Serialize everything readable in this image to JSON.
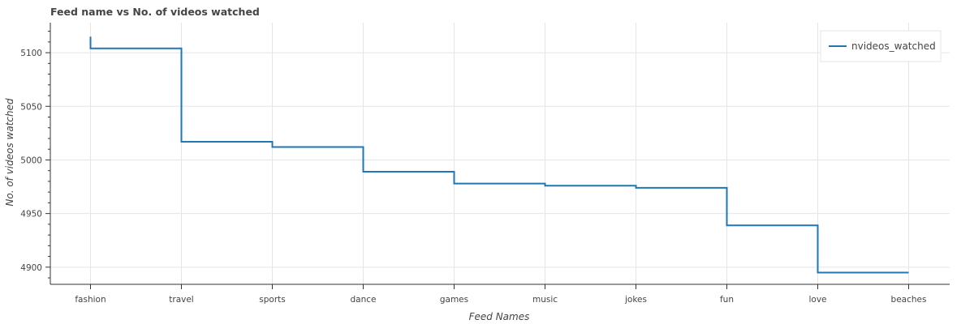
{
  "chart_data": {
    "type": "line",
    "step": true,
    "title": "Feed name vs No. of videos watched",
    "xlabel": "Feed Names",
    "ylabel": "No. of videos watched",
    "categories": [
      "fashion",
      "travel",
      "sports",
      "dance",
      "games",
      "music",
      "jokes",
      "fun",
      "love",
      "beaches"
    ],
    "series": [
      {
        "name": "nvideos_watched",
        "color": "#1f77b4",
        "values": [
          5115,
          5104,
          5017,
          5012,
          4989,
          4978,
          4976,
          4974,
          4939,
          4895
        ]
      }
    ],
    "yticks": [
      4900,
      4950,
      5000,
      5050,
      5100
    ],
    "ylim": [
      4884,
      5128
    ],
    "grid": true,
    "legend_position": "top-right"
  }
}
